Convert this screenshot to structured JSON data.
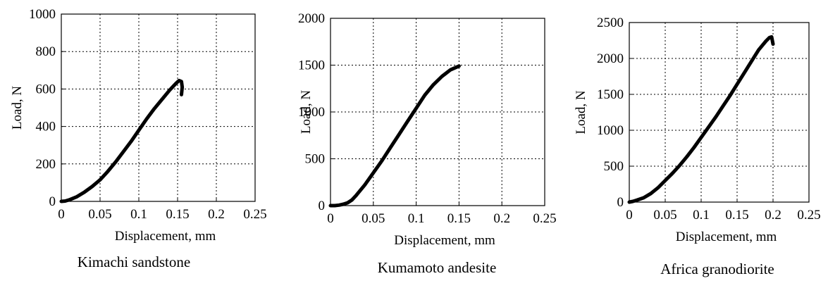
{
  "chart_data": [
    {
      "type": "line",
      "caption": "Kimachi sandstone",
      "xlabel": "Displacement, mm",
      "ylabel": "Load, N",
      "xlim": [
        0,
        0.25
      ],
      "ylim": [
        0,
        1000
      ],
      "xticks": [
        "0",
        "0.05",
        "0.1",
        "0.15",
        "0.2",
        "0.25"
      ],
      "yticks": [
        "0",
        "200",
        "400",
        "600",
        "800",
        "1000"
      ],
      "grid": true,
      "series": [
        {
          "x": [
            0,
            0.005,
            0.01,
            0.02,
            0.03,
            0.04,
            0.05,
            0.06,
            0.07,
            0.08,
            0.09,
            0.1,
            0.11,
            0.12,
            0.13,
            0.14,
            0.148,
            0.152,
            0.155,
            0.156,
            0.155
          ],
          "y": [
            0,
            2,
            8,
            25,
            50,
            80,
            115,
            160,
            210,
            265,
            320,
            380,
            440,
            495,
            545,
            595,
            630,
            645,
            640,
            610,
            570
          ]
        }
      ]
    },
    {
      "type": "line",
      "caption": "Kumamoto andesite",
      "xlabel": "Displacement, mm",
      "ylabel": "Load, N",
      "xlim": [
        0,
        0.25
      ],
      "ylim": [
        0,
        2000
      ],
      "xticks": [
        "0",
        "0.05",
        "0.1",
        "0.15",
        "0.2",
        "0.25"
      ],
      "yticks": [
        "0",
        "500",
        "1000",
        "1500",
        "2000"
      ],
      "grid": true,
      "series": [
        {
          "x": [
            0,
            0.005,
            0.01,
            0.015,
            0.02,
            0.025,
            0.03,
            0.04,
            0.05,
            0.06,
            0.07,
            0.08,
            0.09,
            0.1,
            0.11,
            0.12,
            0.13,
            0.14,
            0.15
          ],
          "y": [
            0,
            0,
            5,
            15,
            30,
            60,
            110,
            220,
            350,
            480,
            620,
            760,
            900,
            1040,
            1180,
            1290,
            1380,
            1450,
            1490
          ]
        }
      ]
    },
    {
      "type": "line",
      "caption": "Africa granodiorite",
      "xlabel": "Displacement, mm",
      "ylabel": "Load, N",
      "xlim": [
        0,
        0.25
      ],
      "ylim": [
        0,
        2500
      ],
      "xticks": [
        "0",
        "0.05",
        "0.1",
        "0.15",
        "0.2",
        "0.25"
      ],
      "yticks": [
        "0",
        "500",
        "1000",
        "1500",
        "2000",
        "2500"
      ],
      "grid": true,
      "series": [
        {
          "x": [
            0,
            0.005,
            0.01,
            0.02,
            0.03,
            0.04,
            0.05,
            0.06,
            0.07,
            0.08,
            0.09,
            0.1,
            0.11,
            0.12,
            0.13,
            0.14,
            0.15,
            0.16,
            0.17,
            0.18,
            0.19,
            0.195,
            0.198,
            0.2
          ],
          "y": [
            0,
            10,
            25,
            60,
            120,
            200,
            300,
            400,
            510,
            630,
            760,
            900,
            1040,
            1180,
            1330,
            1480,
            1640,
            1800,
            1960,
            2120,
            2240,
            2290,
            2300,
            2200
          ]
        }
      ]
    }
  ]
}
